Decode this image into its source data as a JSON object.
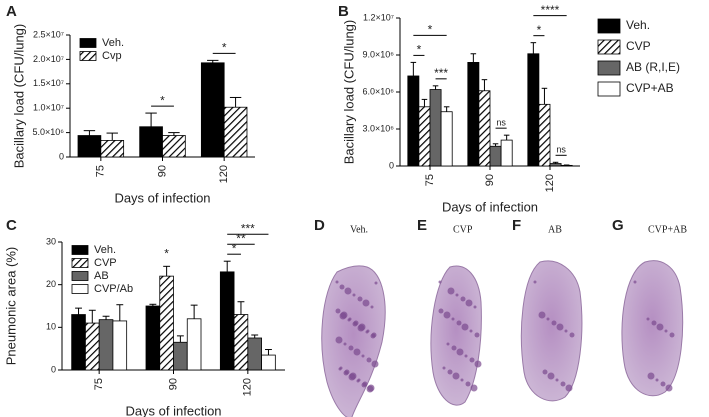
{
  "chart_data": [
    {
      "type": "bar",
      "panel": "A",
      "ylabel": "Bacillary load (CFU/lung)",
      "xlabel": "Days of infection",
      "categories": [
        "75",
        "90",
        "120"
      ],
      "legend": "upper left",
      "ylim": [
        0,
        25000000
      ],
      "yticks": [
        0,
        {
          "value": 5000000,
          "label": "5.0×10⁶"
        },
        {
          "value": 10000000,
          "label": "1.0×10⁷"
        },
        {
          "value": 15000000,
          "label": "1.5×10⁷"
        },
        {
          "value": 20000000,
          "label": "2.0×10⁷"
        },
        {
          "value": 25000000,
          "label": "2.5×10⁷"
        }
      ],
      "series": [
        {
          "name": "Veh.",
          "color": "#000000",
          "values": [
            4400000,
            6200000,
            19300000
          ],
          "errors": [
            1000000,
            2800000,
            500000
          ]
        },
        {
          "name": "Cvp",
          "color": "#000000",
          "pattern": "hatched",
          "values": [
            3400000,
            4400000,
            10200000
          ],
          "errors": [
            1500000,
            600000,
            2000000
          ]
        }
      ],
      "annotations": [
        "*",
        "*"
      ]
    },
    {
      "type": "bar",
      "panel": "B",
      "ylabel": "Bacillary load (CFU/lung)",
      "xlabel": "Days of infection",
      "categories": [
        "75",
        "90",
        "120"
      ],
      "legend": "right",
      "ylim": [
        0,
        12000000
      ],
      "yticks": [
        0,
        {
          "value": 3000000,
          "label": "3.0×10⁶"
        },
        {
          "value": 6000000,
          "label": "6.0×10⁶"
        },
        {
          "value": 9000000,
          "label": "9.0×10⁶"
        },
        {
          "value": 12000000,
          "label": "1.2×10⁷"
        }
      ],
      "series": [
        {
          "name": "Veh.",
          "color": "#000000",
          "values": [
            7300000,
            8400000,
            9100000
          ],
          "errors": [
            1100000,
            700000,
            900000
          ]
        },
        {
          "name": "CVP",
          "color": "#000000",
          "pattern": "hatched",
          "values": [
            4800000,
            6100000,
            5000000
          ],
          "errors": [
            600000,
            900000,
            1300000
          ]
        },
        {
          "name": "AB (R,I,E)",
          "color": "#666666",
          "values": [
            6200000,
            1600000,
            200000
          ],
          "errors": [
            300000,
            200000,
            100000
          ]
        },
        {
          "name": "CVP+AB",
          "color": "#ffffff",
          "values": [
            4400000,
            2100000,
            50000
          ],
          "errors": [
            400000,
            400000,
            30000
          ]
        }
      ],
      "annotations": [
        "*",
        "*",
        "***",
        "ns",
        "****",
        "*",
        "ns"
      ]
    },
    {
      "type": "bar",
      "panel": "C",
      "ylabel": "Pneumonic area (%)",
      "xlabel": "Days of infection",
      "categories": [
        "75",
        "90",
        "120"
      ],
      "legend": "upper left",
      "ylim": [
        0,
        30
      ],
      "yticks": [
        0,
        10,
        20,
        30
      ],
      "series": [
        {
          "name": "Veh.",
          "color": "#000000",
          "values": [
            13,
            15,
            23
          ],
          "errors": [
            1.5,
            0.4,
            2.5
          ]
        },
        {
          "name": "CVP",
          "color": "#000000",
          "pattern": "hatched",
          "values": [
            11,
            22,
            13
          ],
          "errors": [
            3,
            2.3,
            3
          ]
        },
        {
          "name": "AB",
          "color": "#666666",
          "values": [
            11.8,
            6.5,
            7.5
          ],
          "errors": [
            0.8,
            1.5,
            0.7
          ]
        },
        {
          "name": "CVP/Ab",
          "color": "#ffffff",
          "values": [
            11.5,
            12,
            3.5
          ],
          "errors": [
            3.8,
            3.2,
            1.3
          ]
        }
      ],
      "annotations": [
        "*",
        "*",
        "**",
        "***"
      ]
    }
  ],
  "lung_images": [
    {
      "panel": "D",
      "caption": "Veh."
    },
    {
      "panel": "E",
      "caption": "CVP"
    },
    {
      "panel": "F",
      "caption": "AB"
    },
    {
      "panel": "G",
      "caption": "CVP+AB"
    }
  ]
}
